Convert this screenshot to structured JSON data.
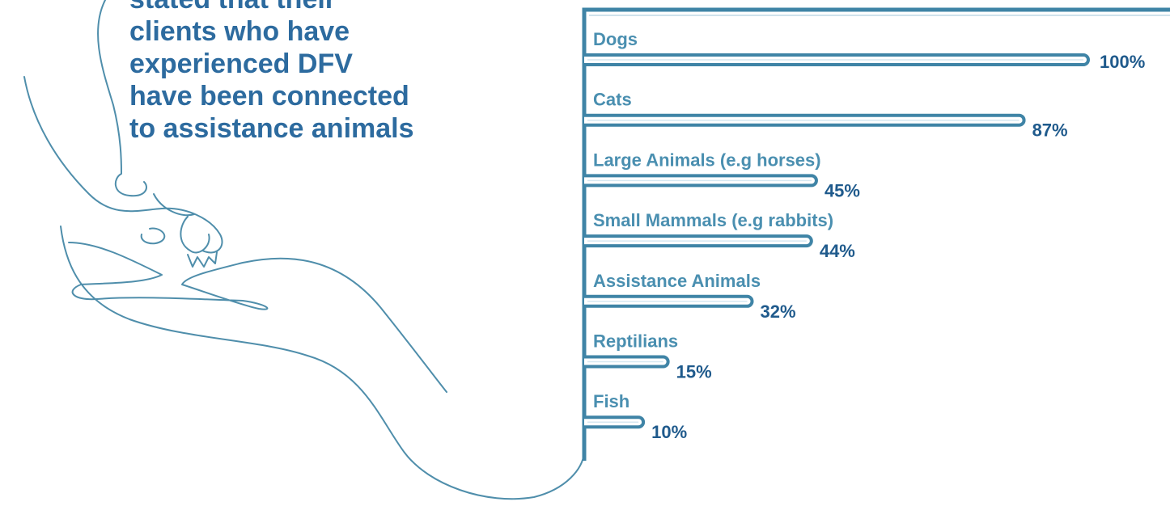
{
  "chart_data": {
    "type": "bar",
    "orientation": "horizontal",
    "intro_lines": [
      "stated that their",
      "clients who have",
      "experienced DFV",
      "have been connected",
      "to assistance animals"
    ],
    "categories": [
      "Dogs",
      "Cats",
      "Large Animals (e.g horses)",
      "Small Mammals (e.g rabbits)",
      "Assistance Animals",
      "Reptilians",
      "Fish"
    ],
    "values": [
      100,
      87,
      45,
      44,
      32,
      15,
      10
    ],
    "value_labels": [
      "100%",
      "87%",
      "45%",
      "44%",
      "32%",
      "15%",
      "10%"
    ],
    "xlim": [
      0,
      100
    ],
    "color": "#3f84a6"
  }
}
